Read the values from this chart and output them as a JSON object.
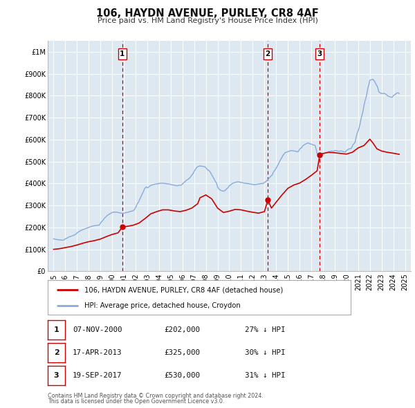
{
  "title": "106, HAYDN AVENUE, PURLEY, CR8 4AF",
  "subtitle": "Price paid vs. HM Land Registry's House Price Index (HPI)",
  "legend_line1": "106, HAYDN AVENUE, PURLEY, CR8 4AF (detached house)",
  "legend_line2": "HPI: Average price, detached house, Croydon",
  "footer1": "Contains HM Land Registry data © Crown copyright and database right 2024.",
  "footer2": "This data is licensed under the Open Government Licence v3.0.",
  "sale_color": "#cc0000",
  "hpi_color": "#88aadd",
  "background_chart": "#dde8f0",
  "grid_color": "#ffffff",
  "transactions": [
    {
      "num": 1,
      "date": "07-NOV-2000",
      "price": 202000,
      "price_str": "£202,000",
      "pct": "27%",
      "x": 2000.87
    },
    {
      "num": 2,
      "date": "17-APR-2013",
      "price": 325000,
      "price_str": "£325,000",
      "pct": "30%",
      "x": 2013.29
    },
    {
      "num": 3,
      "date": "19-SEP-2017",
      "price": 530000,
      "price_str": "£530,000",
      "pct": "31%",
      "x": 2017.72
    }
  ],
  "hpi_data": {
    "years": [
      1995.0,
      1995.08,
      1995.17,
      1995.25,
      1995.33,
      1995.42,
      1995.5,
      1995.58,
      1995.67,
      1995.75,
      1995.83,
      1995.92,
      1996.0,
      1996.08,
      1996.17,
      1996.25,
      1996.33,
      1996.42,
      1996.5,
      1996.58,
      1996.67,
      1996.75,
      1996.83,
      1996.92,
      1997.0,
      1997.08,
      1997.17,
      1997.25,
      1997.33,
      1997.42,
      1997.5,
      1997.58,
      1997.67,
      1997.75,
      1997.83,
      1997.92,
      1998.0,
      1998.08,
      1998.17,
      1998.25,
      1998.33,
      1998.42,
      1998.5,
      1998.58,
      1998.67,
      1998.75,
      1998.83,
      1998.92,
      1999.0,
      1999.08,
      1999.17,
      1999.25,
      1999.33,
      1999.42,
      1999.5,
      1999.58,
      1999.67,
      1999.75,
      1999.83,
      1999.92,
      2000.0,
      2000.08,
      2000.17,
      2000.25,
      2000.33,
      2000.42,
      2000.5,
      2000.58,
      2000.67,
      2000.75,
      2000.83,
      2000.92,
      2001.0,
      2001.08,
      2001.17,
      2001.25,
      2001.33,
      2001.42,
      2001.5,
      2001.58,
      2001.67,
      2001.75,
      2001.83,
      2001.92,
      2002.0,
      2002.08,
      2002.17,
      2002.25,
      2002.33,
      2002.42,
      2002.5,
      2002.58,
      2002.67,
      2002.75,
      2002.83,
      2002.92,
      2003.0,
      2003.08,
      2003.17,
      2003.25,
      2003.33,
      2003.42,
      2003.5,
      2003.58,
      2003.67,
      2003.75,
      2003.83,
      2003.92,
      2004.0,
      2004.08,
      2004.17,
      2004.25,
      2004.33,
      2004.42,
      2004.5,
      2004.58,
      2004.67,
      2004.75,
      2004.83,
      2004.92,
      2005.0,
      2005.08,
      2005.17,
      2005.25,
      2005.33,
      2005.42,
      2005.5,
      2005.58,
      2005.67,
      2005.75,
      2005.83,
      2005.92,
      2006.0,
      2006.08,
      2006.17,
      2006.25,
      2006.33,
      2006.42,
      2006.5,
      2006.58,
      2006.67,
      2006.75,
      2006.83,
      2006.92,
      2007.0,
      2007.08,
      2007.17,
      2007.25,
      2007.33,
      2007.42,
      2007.5,
      2007.58,
      2007.67,
      2007.75,
      2007.83,
      2007.92,
      2008.0,
      2008.08,
      2008.17,
      2008.25,
      2008.33,
      2008.42,
      2008.5,
      2008.58,
      2008.67,
      2008.75,
      2008.83,
      2008.92,
      2009.0,
      2009.08,
      2009.17,
      2009.25,
      2009.33,
      2009.42,
      2009.5,
      2009.58,
      2009.67,
      2009.75,
      2009.83,
      2009.92,
      2010.0,
      2010.08,
      2010.17,
      2010.25,
      2010.33,
      2010.42,
      2010.5,
      2010.58,
      2010.67,
      2010.75,
      2010.83,
      2010.92,
      2011.0,
      2011.08,
      2011.17,
      2011.25,
      2011.33,
      2011.42,
      2011.5,
      2011.58,
      2011.67,
      2011.75,
      2011.83,
      2011.92,
      2012.0,
      2012.08,
      2012.17,
      2012.25,
      2012.33,
      2012.42,
      2012.5,
      2012.58,
      2012.67,
      2012.75,
      2012.83,
      2012.92,
      2013.0,
      2013.08,
      2013.17,
      2013.25,
      2013.33,
      2013.42,
      2013.5,
      2013.58,
      2013.67,
      2013.75,
      2013.83,
      2013.92,
      2014.0,
      2014.08,
      2014.17,
      2014.25,
      2014.33,
      2014.42,
      2014.5,
      2014.58,
      2014.67,
      2014.75,
      2014.83,
      2014.92,
      2015.0,
      2015.08,
      2015.17,
      2015.25,
      2015.33,
      2015.42,
      2015.5,
      2015.58,
      2015.67,
      2015.75,
      2015.83,
      2015.92,
      2016.0,
      2016.08,
      2016.17,
      2016.25,
      2016.33,
      2016.42,
      2016.5,
      2016.58,
      2016.67,
      2016.75,
      2016.83,
      2016.92,
      2017.0,
      2017.08,
      2017.17,
      2017.25,
      2017.33,
      2017.42,
      2017.5,
      2017.58,
      2017.67,
      2017.75,
      2017.83,
      2017.92,
      2018.0,
      2018.08,
      2018.17,
      2018.25,
      2018.33,
      2018.42,
      2018.5,
      2018.58,
      2018.67,
      2018.75,
      2018.83,
      2018.92,
      2019.0,
      2019.08,
      2019.17,
      2019.25,
      2019.33,
      2019.42,
      2019.5,
      2019.58,
      2019.67,
      2019.75,
      2019.83,
      2019.92,
      2020.0,
      2020.08,
      2020.17,
      2020.25,
      2020.33,
      2020.42,
      2020.5,
      2020.58,
      2020.67,
      2020.75,
      2020.83,
      2020.92,
      2021.0,
      2021.08,
      2021.17,
      2021.25,
      2021.33,
      2021.42,
      2021.5,
      2021.58,
      2021.67,
      2021.75,
      2021.83,
      2021.92,
      2022.0,
      2022.08,
      2022.17,
      2022.25,
      2022.33,
      2022.42,
      2022.5,
      2022.58,
      2022.67,
      2022.75,
      2022.83,
      2022.92,
      2023.0,
      2023.08,
      2023.17,
      2023.25,
      2023.33,
      2023.42,
      2023.5,
      2023.58,
      2023.67,
      2023.75,
      2023.83,
      2023.92,
      2024.0,
      2024.08,
      2024.17,
      2024.25,
      2024.33,
      2024.42,
      2024.5
    ],
    "values": [
      148000,
      147000,
      146000,
      145000,
      144000,
      143500,
      143000,
      142500,
      142000,
      142000,
      142500,
      144000,
      148000,
      150000,
      152000,
      155000,
      157000,
      158000,
      160000,
      161000,
      163000,
      165000,
      167000,
      170000,
      175000,
      178000,
      181000,
      183000,
      186000,
      188000,
      190000,
      191000,
      193000,
      195000,
      197000,
      198000,
      200000,
      202000,
      203000,
      205000,
      206000,
      207000,
      208000,
      208500,
      209000,
      210000,
      210500,
      211000,
      220000,
      225000,
      230000,
      235000,
      241000,
      246000,
      250000,
      254000,
      257000,
      260000,
      263000,
      265000,
      268000,
      269000,
      269000,
      270000,
      270000,
      269000,
      268000,
      267000,
      266000,
      265000,
      265000,
      265000,
      265000,
      266000,
      267000,
      268000,
      269000,
      270000,
      272000,
      273000,
      274000,
      275000,
      278000,
      282000,
      290000,
      300000,
      310000,
      315000,
      325000,
      335000,
      345000,
      354000,
      363000,
      375000,
      380000,
      385000,
      380000,
      383000,
      386000,
      390000,
      392000,
      393000,
      395000,
      396000,
      397000,
      398000,
      398000,
      399000,
      400000,
      401000,
      401000,
      402000,
      401000,
      401000,
      400000,
      400000,
      399000,
      398000,
      398000,
      397000,
      395000,
      394000,
      394000,
      393000,
      392000,
      391000,
      390000,
      390000,
      391000,
      392000,
      392000,
      393000,
      398000,
      402000,
      406000,
      410000,
      414000,
      417000,
      420000,
      424000,
      428000,
      435000,
      440000,
      447000,
      455000,
      462000,
      469000,
      475000,
      477000,
      479000,
      480000,
      479000,
      479000,
      478000,
      477000,
      476000,
      472000,
      467000,
      461000,
      460000,
      455000,
      448000,
      440000,
      432000,
      424000,
      415000,
      408000,
      400000,
      385000,
      377000,
      372000,
      370000,
      367000,
      366000,
      365000,
      367000,
      369000,
      375000,
      378000,
      382000,
      390000,
      393000,
      396000,
      400000,
      402000,
      403000,
      405000,
      406000,
      407000,
      408000,
      407000,
      406000,
      405000,
      404000,
      403000,
      402000,
      401000,
      401000,
      400000,
      400000,
      399000,
      398000,
      397000,
      397000,
      395000,
      395000,
      395000,
      395000,
      396000,
      397000,
      398000,
      398000,
      399000,
      400000,
      400000,
      401000,
      405000,
      408000,
      411000,
      415000,
      420000,
      425000,
      430000,
      435000,
      439000,
      450000,
      457000,
      462000,
      470000,
      478000,
      486000,
      495000,
      504000,
      512000,
      520000,
      528000,
      534000,
      540000,
      542000,
      543000,
      545000,
      547000,
      548000,
      550000,
      550000,
      549000,
      548000,
      548000,
      547000,
      545000,
      544000,
      548000,
      555000,
      561000,
      563000,
      570000,
      574000,
      577000,
      580000,
      582000,
      583000,
      585000,
      582000,
      580000,
      580000,
      577000,
      576000,
      575000,
      573000,
      556000,
      535000,
      533000,
      532000,
      530000,
      528000,
      527000,
      535000,
      537000,
      538000,
      540000,
      542000,
      543000,
      545000,
      546000,
      547000,
      548000,
      547000,
      546000,
      550000,
      550000,
      549000,
      548000,
      547000,
      547000,
      548000,
      548000,
      547000,
      545000,
      544000,
      543000,
      550000,
      553000,
      556000,
      558000,
      559000,
      560000,
      570000,
      578000,
      582000,
      590000,
      612000,
      630000,
      640000,
      653000,
      672000,
      695000,
      712000,
      730000,
      755000,
      775000,
      790000,
      810000,
      835000,
      852000,
      870000,
      872000,
      873000,
      875000,
      870000,
      864000,
      855000,
      847000,
      838000,
      820000,
      814000,
      812000,
      810000,
      810000,
      810000,
      810000,
      808000,
      805000,
      800000,
      798000,
      796000,
      795000,
      793000,
      793000,
      800000,
      803000,
      806000,
      810000,
      812000,
      813000,
      810000
    ]
  },
  "property_data": {
    "years": [
      1995.0,
      1995.5,
      1996.0,
      1996.5,
      1997.0,
      1997.5,
      1998.0,
      1998.5,
      1999.0,
      1999.5,
      2000.0,
      2000.5,
      2000.87,
      2001.3,
      2001.8,
      2002.3,
      2002.8,
      2003.3,
      2003.8,
      2004.3,
      2004.8,
      2005.3,
      2005.8,
      2006.3,
      2006.8,
      2007.3,
      2007.5,
      2008.0,
      2008.5,
      2009.0,
      2009.5,
      2010.0,
      2010.5,
      2011.0,
      2011.5,
      2012.0,
      2012.5,
      2013.0,
      2013.29,
      2013.6,
      2014.0,
      2014.5,
      2015.0,
      2015.5,
      2016.0,
      2016.5,
      2017.0,
      2017.5,
      2017.72,
      2018.0,
      2018.5,
      2019.0,
      2019.5,
      2020.0,
      2020.5,
      2021.0,
      2021.5,
      2022.0,
      2022.3,
      2022.6,
      2023.0,
      2023.5,
      2024.0,
      2024.5
    ],
    "values": [
      100000,
      103000,
      108000,
      113000,
      120000,
      128000,
      135000,
      140000,
      147000,
      158000,
      168000,
      175000,
      202000,
      205000,
      210000,
      220000,
      240000,
      262000,
      272000,
      280000,
      280000,
      275000,
      272000,
      278000,
      288000,
      308000,
      335000,
      348000,
      330000,
      288000,
      268000,
      274000,
      282000,
      280000,
      274000,
      269000,
      265000,
      272000,
      325000,
      288000,
      315000,
      348000,
      378000,
      393000,
      402000,
      418000,
      437000,
      458000,
      530000,
      537000,
      542000,
      540000,
      537000,
      534000,
      542000,
      562000,
      573000,
      602000,
      582000,
      558000,
      548000,
      542000,
      538000,
      533000
    ]
  },
  "ylim": [
    0,
    1050000
  ],
  "xlim": [
    1994.5,
    2025.5
  ],
  "yticks": [
    0,
    100000,
    200000,
    300000,
    400000,
    500000,
    600000,
    700000,
    800000,
    900000,
    1000000
  ],
  "ytick_labels": [
    "£0",
    "£100K",
    "£200K",
    "£300K",
    "£400K",
    "£500K",
    "£600K",
    "£700K",
    "£800K",
    "£900K",
    "£1M"
  ],
  "xticks": [
    1995,
    1996,
    1997,
    1998,
    1999,
    2000,
    2001,
    2002,
    2003,
    2004,
    2005,
    2006,
    2007,
    2008,
    2009,
    2010,
    2011,
    2012,
    2013,
    2014,
    2015,
    2016,
    2017,
    2018,
    2019,
    2020,
    2021,
    2022,
    2023,
    2024,
    2025
  ]
}
